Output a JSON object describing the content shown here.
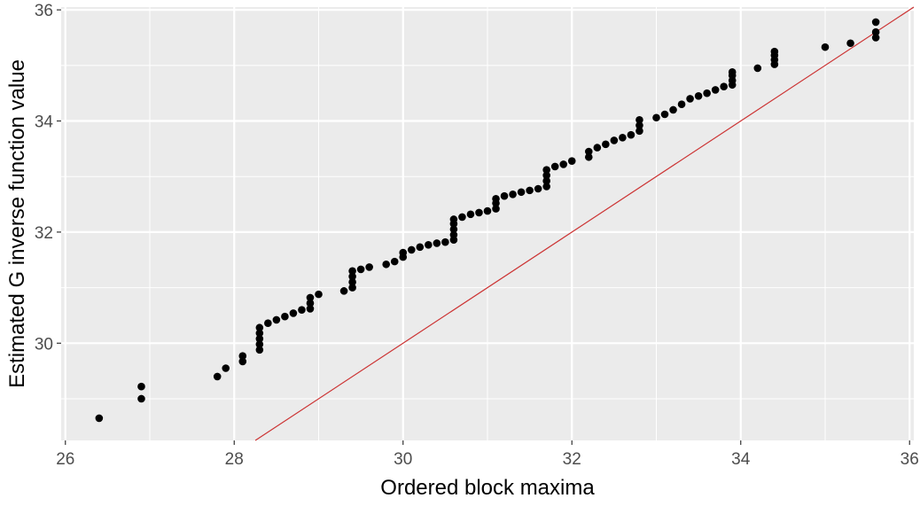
{
  "chart_data": {
    "type": "scatter",
    "title": "",
    "xlabel": "Ordered block maxima",
    "ylabel": "Estimated G inverse function value",
    "xlim": [
      25.95,
      36.05
    ],
    "ylim": [
      28.25,
      36.05
    ],
    "xticks": [
      26,
      28,
      30,
      32,
      34,
      36
    ],
    "yticks": [
      30,
      32,
      34,
      36
    ],
    "xtick_labels": [
      "26",
      "28",
      "30",
      "32",
      "34",
      "36"
    ],
    "ytick_labels": [
      "30",
      "32",
      "34",
      "36"
    ],
    "grid": true,
    "panel_background": "#ebebeb",
    "point_color": "#000000",
    "reference_line": {
      "slope": 1,
      "intercept": 0,
      "color": "#cc3333"
    },
    "points": [
      [
        26.4,
        28.65
      ],
      [
        26.9,
        29.0
      ],
      [
        26.9,
        29.22
      ],
      [
        27.8,
        29.4
      ],
      [
        27.9,
        29.55
      ],
      [
        28.1,
        29.67
      ],
      [
        28.1,
        29.77
      ],
      [
        28.3,
        29.88
      ],
      [
        28.3,
        29.98
      ],
      [
        28.3,
        30.08
      ],
      [
        28.3,
        30.18
      ],
      [
        28.3,
        30.28
      ],
      [
        28.4,
        30.36
      ],
      [
        28.5,
        30.42
      ],
      [
        28.6,
        30.48
      ],
      [
        28.7,
        30.54
      ],
      [
        28.8,
        30.6
      ],
      [
        28.9,
        30.62
      ],
      [
        28.9,
        30.72
      ],
      [
        28.9,
        30.82
      ],
      [
        29.0,
        30.88
      ],
      [
        29.3,
        30.94
      ],
      [
        29.4,
        31.0
      ],
      [
        29.4,
        31.1
      ],
      [
        29.4,
        31.2
      ],
      [
        29.4,
        31.3
      ],
      [
        29.5,
        31.33
      ],
      [
        29.6,
        31.37
      ],
      [
        29.8,
        31.42
      ],
      [
        29.9,
        31.47
      ],
      [
        30.0,
        31.55
      ],
      [
        30.0,
        31.63
      ],
      [
        30.1,
        31.68
      ],
      [
        30.2,
        31.73
      ],
      [
        30.3,
        31.77
      ],
      [
        30.4,
        31.8
      ],
      [
        30.5,
        31.82
      ],
      [
        30.6,
        31.86
      ],
      [
        30.6,
        31.95
      ],
      [
        30.6,
        32.05
      ],
      [
        30.6,
        32.15
      ],
      [
        30.6,
        32.23
      ],
      [
        30.7,
        32.27
      ],
      [
        30.8,
        32.32
      ],
      [
        30.9,
        32.35
      ],
      [
        31.0,
        32.38
      ],
      [
        31.1,
        32.42
      ],
      [
        31.1,
        32.52
      ],
      [
        31.1,
        32.6
      ],
      [
        31.2,
        32.65
      ],
      [
        31.3,
        32.68
      ],
      [
        31.4,
        32.72
      ],
      [
        31.5,
        32.75
      ],
      [
        31.6,
        32.78
      ],
      [
        31.7,
        32.82
      ],
      [
        31.7,
        32.92
      ],
      [
        31.7,
        33.02
      ],
      [
        31.7,
        33.12
      ],
      [
        31.8,
        33.18
      ],
      [
        31.9,
        33.22
      ],
      [
        32.0,
        33.28
      ],
      [
        32.2,
        33.35
      ],
      [
        32.2,
        33.45
      ],
      [
        32.3,
        33.52
      ],
      [
        32.4,
        33.58
      ],
      [
        32.5,
        33.65
      ],
      [
        32.6,
        33.7
      ],
      [
        32.7,
        33.75
      ],
      [
        32.8,
        33.82
      ],
      [
        32.8,
        33.92
      ],
      [
        32.8,
        34.02
      ],
      [
        33.0,
        34.06
      ],
      [
        33.1,
        34.12
      ],
      [
        33.2,
        34.2
      ],
      [
        33.3,
        34.3
      ],
      [
        33.4,
        34.4
      ],
      [
        33.5,
        34.45
      ],
      [
        33.6,
        34.5
      ],
      [
        33.7,
        34.56
      ],
      [
        33.8,
        34.62
      ],
      [
        33.9,
        34.65
      ],
      [
        33.9,
        34.73
      ],
      [
        33.9,
        34.82
      ],
      [
        33.9,
        34.88
      ],
      [
        34.2,
        34.95
      ],
      [
        34.4,
        35.02
      ],
      [
        34.4,
        35.1
      ],
      [
        34.4,
        35.18
      ],
      [
        34.4,
        35.25
      ],
      [
        35.0,
        35.33
      ],
      [
        35.3,
        35.4
      ],
      [
        35.6,
        35.5
      ],
      [
        35.6,
        35.6
      ],
      [
        35.6,
        35.78
      ]
    ]
  }
}
